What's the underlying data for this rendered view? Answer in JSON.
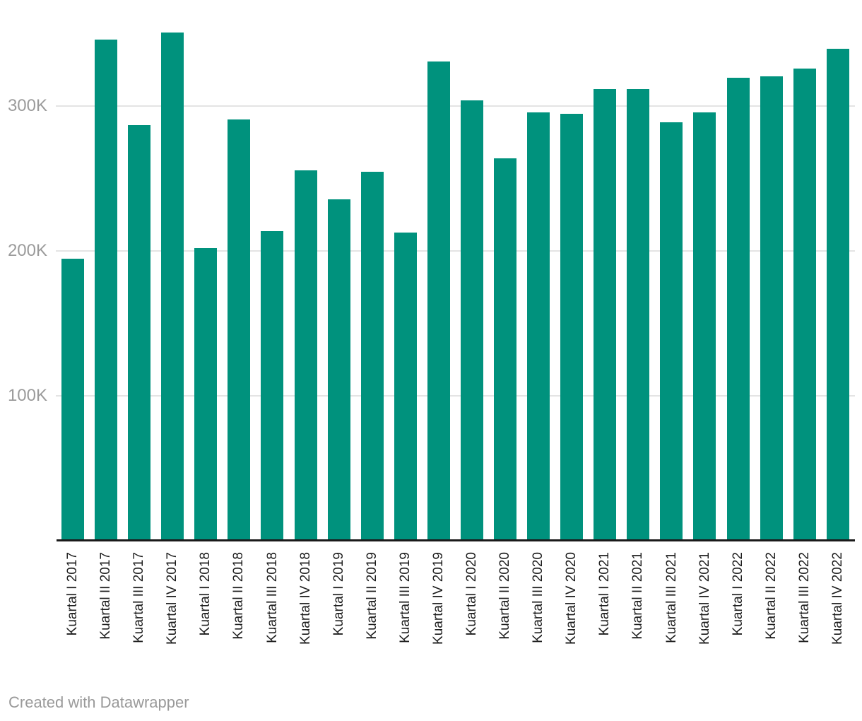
{
  "chart_data": {
    "type": "bar",
    "title": "",
    "xlabel": "",
    "ylabel": "",
    "categories": [
      "Kuartal I 2017",
      "Kuartal II 2017",
      "Kuartal III 2017",
      "Kuartal IV 2017",
      "Kuartal I 2018",
      "Kuartal II 2018",
      "Kuartal III 2018",
      "Kuartal IV 2018",
      "Kuartal I 2019",
      "Kuartal II 2019",
      "Kuartal III 2019",
      "Kuartal IV 2019",
      "Kuartal I 2020",
      "Kuartal II 2020",
      "Kuartal III 2020",
      "Kuartal IV 2020",
      "Kuartal I 2021",
      "Kuartal II 2021",
      "Kuartal III 2021",
      "Kuartal IV 2021",
      "Kuartal I 2022",
      "Kuartal II 2022",
      "Kuartal III 2022",
      "Kuartal IV 2022"
    ],
    "values": [
      194000,
      345000,
      286000,
      350000,
      201000,
      290000,
      213000,
      255000,
      235000,
      254000,
      212000,
      330000,
      303000,
      263000,
      295000,
      294000,
      311000,
      311000,
      288000,
      295000,
      319000,
      320000,
      325000,
      339000
    ],
    "ylim": [
      0,
      373000
    ],
    "yticks": [
      {
        "value": 100000,
        "label": "100K"
      },
      {
        "value": 200000,
        "label": "200K"
      },
      {
        "value": 300000,
        "label": "300K"
      }
    ],
    "grid": "horizontal",
    "legend": "none",
    "bar_color": "#00927d"
  },
  "colors": {
    "background": "#ffffff",
    "bar": "#00927d",
    "axis_line": "#1a1a1a",
    "gridline": "#e4e4e4",
    "y_tick_text": "#9b9b9b",
    "x_tick_text": "#1d1d1d",
    "credit_text": "#9a9a9a"
  },
  "footer": {
    "credit_label": "Created with Datawrapper"
  }
}
